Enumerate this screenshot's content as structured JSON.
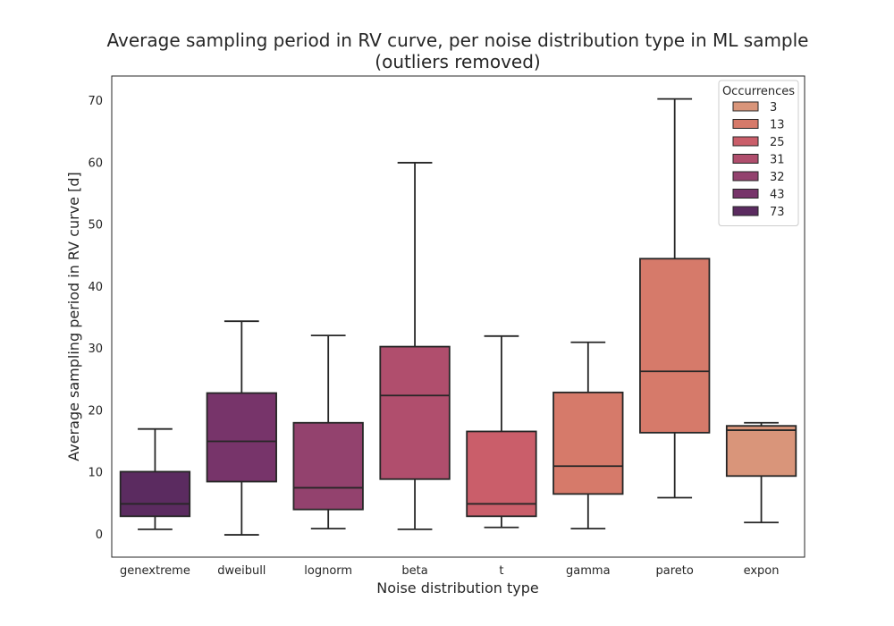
{
  "chart_data": {
    "type": "box",
    "title_line1": "Average sampling period in RV curve, per noise distribution type in ML sample",
    "title_line2": "(outliers removed)",
    "xlabel": "Noise distribution type",
    "ylabel": "Average sampling period in RV curve [d]",
    "ylim": [
      -3.7,
      74
    ],
    "yticks": [
      "0",
      "10",
      "20",
      "30",
      "40",
      "50",
      "60",
      "70"
    ],
    "grid": false,
    "categories": [
      "genextreme",
      "dweibull",
      "lognorm",
      "beta",
      "t",
      "gamma",
      "pareto",
      "expon"
    ],
    "boxes": [
      {
        "category": "genextreme",
        "whisker_low": 0.8,
        "q1": 2.9,
        "median": 4.9,
        "q3": 10.1,
        "whisker_high": 17.0,
        "color": "#5b2b60",
        "occurrences": "73"
      },
      {
        "category": "dweibull",
        "whisker_low": -0.1,
        "q1": 8.5,
        "median": 15.0,
        "q3": 22.8,
        "whisker_high": 34.4,
        "color": "#77346a",
        "occurrences": "43"
      },
      {
        "category": "lognorm",
        "whisker_low": 0.9,
        "q1": 4.0,
        "median": 7.5,
        "q3": 18.0,
        "whisker_high": 32.1,
        "color": "#93426e",
        "occurrences": "32"
      },
      {
        "category": "beta",
        "whisker_low": 0.8,
        "q1": 8.9,
        "median": 22.4,
        "q3": 30.3,
        "whisker_high": 60.0,
        "color": "#b04e6d",
        "occurrences": "31"
      },
      {
        "category": "t",
        "whisker_low": 1.1,
        "q1": 2.9,
        "median": 4.9,
        "q3": 16.6,
        "whisker_high": 32.0,
        "color": "#ca5e6a",
        "occurrences": "25"
      },
      {
        "category": "gamma",
        "whisker_low": 0.9,
        "q1": 6.5,
        "median": 11.0,
        "q3": 22.9,
        "whisker_high": 31.0,
        "color": "#d67a6a",
        "occurrences": "13"
      },
      {
        "category": "pareto",
        "whisker_low": 5.9,
        "q1": 16.4,
        "median": 26.3,
        "q3": 44.5,
        "whisker_high": 70.3,
        "color": "#d67a6a",
        "occurrences": "13"
      },
      {
        "category": "expon",
        "whisker_low": 1.9,
        "q1": 9.4,
        "median": 16.8,
        "q3": 17.5,
        "whisker_high": 18.0,
        "color": "#d9957a",
        "occurrences": "3"
      }
    ],
    "legend": {
      "title": "Occurrences",
      "placement": "top-right",
      "items": [
        {
          "label": "3",
          "color": "#d9957a"
        },
        {
          "label": "13",
          "color": "#d67a6a"
        },
        {
          "label": "25",
          "color": "#ca5e6a"
        },
        {
          "label": "31",
          "color": "#b04e6d"
        },
        {
          "label": "32",
          "color": "#93426e"
        },
        {
          "label": "43",
          "color": "#77346a"
        },
        {
          "label": "73",
          "color": "#5b2b60"
        }
      ]
    }
  }
}
